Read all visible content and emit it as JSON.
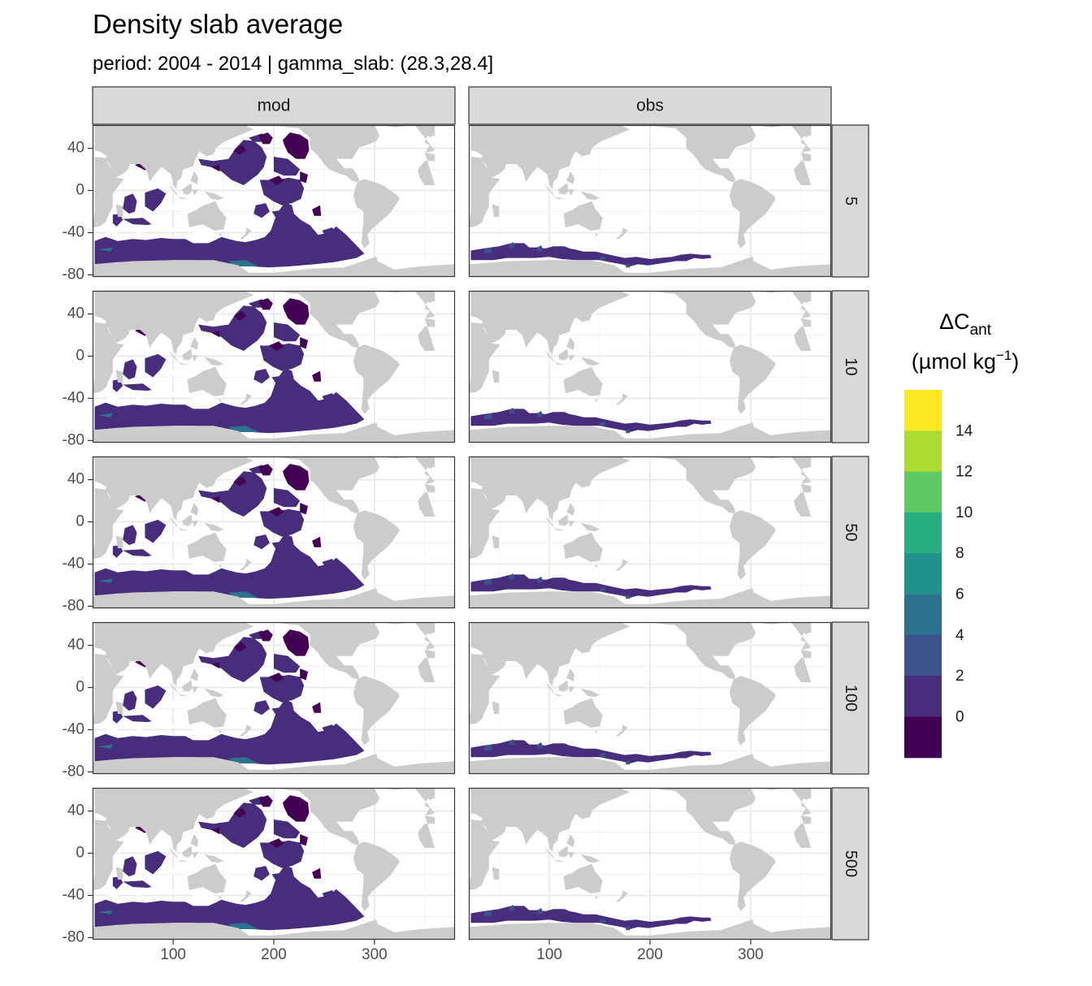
{
  "chart_data": {
    "type": "heatmap",
    "title": "Density slab average",
    "subtitle": "period: 2004 - 2014 | gamma_slab: (28.3,28.4]",
    "xlabel": "",
    "ylabel": "",
    "xlim": [
      20,
      380
    ],
    "ylim": [
      -82,
      62
    ],
    "x_ticks": [
      100,
      200,
      300
    ],
    "y_ticks": [
      40,
      0,
      -40,
      -80
    ],
    "col_facets": [
      "mod",
      "obs"
    ],
    "row_facets": [
      "5",
      "10",
      "50",
      "100",
      "500"
    ],
    "legend": {
      "title": "ΔC",
      "title_sub": "ant",
      "unit": "(µmol kg",
      "unit_sup": "−1",
      "unit_close": ")",
      "breaks": [
        "14",
        "12",
        "10",
        "8",
        "6",
        "4",
        "2",
        "0"
      ],
      "colors": [
        "#fde725",
        "#addc30",
        "#5ec962",
        "#28ae80",
        "#21918c",
        "#2c728e",
        "#3b528b",
        "#472d7b",
        "#440154"
      ],
      "placement": "right"
    },
    "land_color": "#cccccc",
    "panel_notes": {
      "mod": "Delta C_ant between 0 and 2 across Southern Ocean, Indian and Pacific basins; small patches near -2 in the North Pacific",
      "obs": "Delta C_ant data only along the Southern Ocean track, values mostly 0 to 4"
    }
  }
}
